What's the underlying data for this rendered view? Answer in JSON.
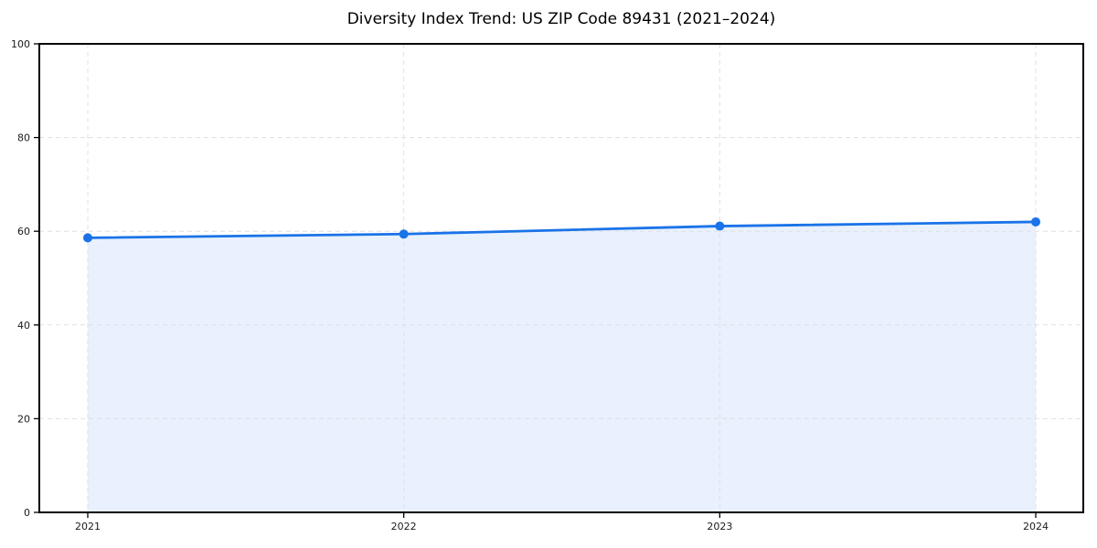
{
  "figure": {
    "title": "Diversity Index Trend: US ZIP Code 89431 (2021–2024)"
  },
  "chart_data": {
    "type": "area",
    "title": "Diversity Index Trend: US ZIP Code 89431 (2021–2024)",
    "x": [
      "2021",
      "2022",
      "2023",
      "2024"
    ],
    "series": [
      {
        "name": "Diversity Index",
        "values": [
          58.6,
          59.4,
          61.1,
          62.0
        ]
      }
    ],
    "xlabel": "",
    "ylabel": "",
    "ylim": [
      0,
      100
    ],
    "yticks": [
      0,
      20,
      40,
      60,
      80,
      100
    ],
    "grid": {
      "style": "dashed",
      "axes": "both",
      "color": "#e0e0e0"
    },
    "legend": "none",
    "colors": {
      "line": "#1a73e8",
      "marker": "#1a73e8",
      "fill": "#e8f1fd",
      "spine": "#000000",
      "tick_label": "#1a1a1a"
    }
  }
}
